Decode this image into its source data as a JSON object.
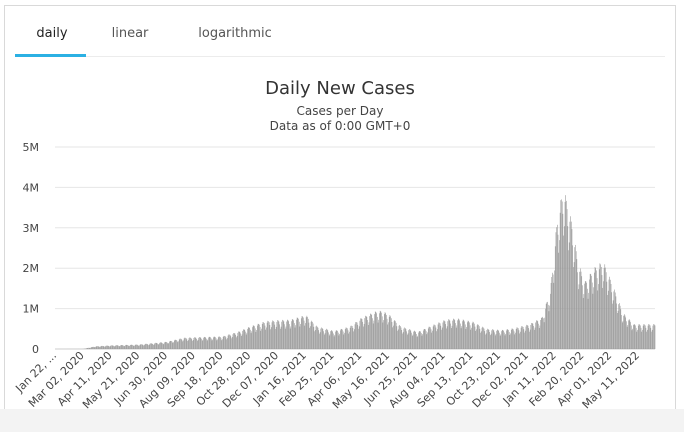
{
  "tabs": [
    {
      "label": "daily",
      "active": true
    },
    {
      "label": "linear",
      "active": false
    },
    {
      "label": "logarithmic",
      "active": false
    }
  ],
  "chart_data": {
    "type": "bar",
    "title": "Daily New Cases",
    "subtitle_line1": "Cases per Day",
    "subtitle_line2": "Data as of 0:00 GMT+0",
    "xlabel": "",
    "ylabel": "",
    "ylim": [
      0,
      5000000
    ],
    "y_ticks": [
      {
        "value": 0,
        "label": "0"
      },
      {
        "value": 1000000,
        "label": "1M"
      },
      {
        "value": 2000000,
        "label": "2M"
      },
      {
        "value": 3000000,
        "label": "3M"
      },
      {
        "value": 4000000,
        "label": "4M"
      },
      {
        "value": 5000000,
        "label": "5M"
      }
    ],
    "x_range": [
      "2020-01-22",
      "2022-05-31"
    ],
    "x_tick_labels": [
      "Jan 22, ...",
      "Mar 02, 2020",
      "Apr 11, 2020",
      "May 21, 2020",
      "Jun 30, 2020",
      "Aug 09, 2020",
      "Sep 18, 2020",
      "Oct 28, 2020",
      "Dec 07, 2020",
      "Jan 16, 2021",
      "Feb 25, 2021",
      "Apr 06, 2021",
      "May 16, 2021",
      "Jun 25, 2021",
      "Aug 04, 2021",
      "Sep 13, 2021",
      "Oct 23, 2021",
      "Dec 02, 2021",
      "Jan 11, 2022",
      "Feb 20, 2022",
      "Apr 01, 2022",
      "May 11, 2022"
    ],
    "grid": true,
    "color": "#999999",
    "series": [
      {
        "x": [
          "2020-01-22",
          "2020-03-02",
          "2020-03-20",
          "2020-04-11",
          "2020-05-21",
          "2020-06-30",
          "2020-07-25",
          "2020-08-09",
          "2020-09-18",
          "2020-10-10",
          "2020-10-28",
          "2020-11-20",
          "2020-12-07",
          "2020-12-25",
          "2021-01-08",
          "2021-01-16",
          "2021-02-01",
          "2021-02-25",
          "2021-03-20",
          "2021-04-06",
          "2021-04-25",
          "2021-05-05",
          "2021-05-16",
          "2021-06-01",
          "2021-06-25",
          "2021-07-15",
          "2021-08-04",
          "2021-08-20",
          "2021-09-13",
          "2021-10-01",
          "2021-10-23",
          "2021-11-10",
          "2021-12-02",
          "2021-12-20",
          "2022-01-01",
          "2022-01-11",
          "2022-01-20",
          "2022-02-01",
          "2022-02-10",
          "2022-02-20",
          "2022-03-05",
          "2022-03-18",
          "2022-04-01",
          "2022-04-15",
          "2022-05-01",
          "2022-05-11",
          "2022-05-31"
        ],
        "values": [
          0,
          1000,
          60000,
          80000,
          100000,
          160000,
          250000,
          260000,
          280000,
          380000,
          500000,
          620000,
          640000,
          650000,
          720000,
          750000,
          500000,
          400000,
          500000,
          700000,
          830000,
          850000,
          750000,
          500000,
          380000,
          520000,
          650000,
          680000,
          600000,
          450000,
          420000,
          460000,
          550000,
          700000,
          1300000,
          2900000,
          3600000,
          2800000,
          1900000,
          1500000,
          1800000,
          1950000,
          1400000,
          800000,
          550000,
          550000,
          550000
        ]
      }
    ]
  }
}
